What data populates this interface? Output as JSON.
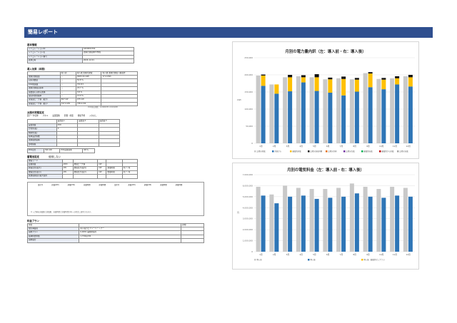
{
  "report_title": "簡易レポート",
  "basic": {
    "heading": "基本情報",
    "rows": [
      {
        "label": "シミュレーションID",
        "value": "S2K0001302"
      },
      {
        "label": "シミュレーション名",
        "value": "太陽光発電用PV作成"
      },
      {
        "label": "シミュレーション番号",
        "value": ""
      },
      {
        "label": "試算日時",
        "value": "2024-12-01"
      }
    ]
  },
  "effect": {
    "heading": "導入効果（年間）",
    "header": [
      "",
      "導入前",
      "導入後\n太陽光発電",
      "導入後\n太陽光発電＋蓄電池"
    ],
    "rows": [
      [
        "太陽光発電量",
        "－",
        "4903.04 kWh",
        "17.4 kWh"
      ],
      [
        "自家消費量",
        "－",
        "52.8 %",
        ""
      ],
      [
        "CO2削減量",
        "－",
        "372.8 t",
        ""
      ],
      [
        "太陽光発電自家率",
        "－",
        "23.7 %",
        ""
      ],
      [
        "需要量に占める太陽",
        "－",
        "3.8 %",
        ""
      ],
      [
        "電気料金削減率",
        "－",
        "13.9 %",
        ""
      ],
      [
        "受電量ピーク値（最大）",
        "567 kW",
        "475 kW",
        ""
      ],
      [
        "受電量ピーク値（最小）",
        "747.4 kW",
        "738.2 kW",
        ""
      ]
    ],
    "note": "CO2排出係数：0.000438 t-CO2/kWh"
  },
  "solar": {
    "heading": "太陽光発電設定",
    "line": [
      "面データ名称",
      "パネル",
      "設置面積",
      "影響・斜面",
      "発電予想",
      "入力なし"
    ],
    "columns": [
      "",
      "設置面１",
      "設置面２",
      "設置面３"
    ],
    "rows": [
      [
        "設置容量",
        "450",
        "",
        ""
      ],
      [
        "方位角(度)",
        "0",
        "",
        ""
      ],
      [
        "傾斜角(度)",
        "",
        "",
        ""
      ],
      [
        "基本設計係数",
        "",
        "",
        ""
      ],
      [
        "太陽電池面積",
        "",
        "",
        ""
      ],
      [
        "部材損失",
        "",
        "",
        ""
      ]
    ],
    "pcs": [
      "PCS出力",
      "500 kW",
      "PCS変換効率",
      "98 %"
    ]
  },
  "storage": {
    "heading": "蓄電池設定",
    "status": "使用しない",
    "rows": [
      [
        "放電モード",
        "",
        "",
        "",
        "",
        ""
      ],
      [
        "定格容量",
        "kWh",
        "放電ピーク値",
        "kW",
        "",
        ""
      ],
      [
        "充電出力(最大)",
        "kW",
        "放電出力(最大)",
        "kW",
        "充電時間",
        "時 ～ 時"
      ],
      [
        "放電出力(最小)",
        "kW",
        "放電出力(最小)",
        "kW",
        "放電時間",
        "時 ～ 時"
      ],
      [
        "充放電容量の最大使用",
        "",
        "",
        "",
        "",
        ""
      ]
    ],
    "box_header": [
      "設定月",
      "充電(kW)",
      "放電(kW)",
      "充電時間",
      "放電時間"
    ],
    "box_note": "※ 入力値は充電量と放電量、充電時間と放電時間が同一の場合に使用されます。"
  },
  "tariff": {
    "heading": "料金プラン",
    "columns": [
      "項目",
      "",
      "詳細"
    ],
    "rows": [
      [
        "電気事業者",
        "東京電力エナジーパートナー"
      ],
      [
        "契約プラン",
        "6,000V 業務用電力"
      ],
      [
        "基本料金単価",
        "1,734円/kW"
      ],
      [
        "契約電力",
        ""
      ]
    ]
  },
  "chart_data": [
    {
      "type": "bar",
      "title": "月別の電力量内訳（左：導入前・右：導入後）",
      "ylabel": "kWh",
      "ylim": [
        0,
        250000
      ],
      "yticks": [
        "0",
        "50,000",
        "100,000",
        "150,000",
        "200,000",
        "250,000"
      ],
      "categories": [
        "1月",
        "2月",
        "3月",
        "4月",
        "5月",
        "6月",
        "7月",
        "8月",
        "9月",
        "10月",
        "11月",
        "12月"
      ],
      "series": [
        {
          "name": "導入前",
          "color": "#c9c9c9",
          "values": [
            198000,
            172000,
            193000,
            196000,
            193000,
            187000,
            190000,
            187000,
            205000,
            188000,
            190000,
            196000
          ]
        },
        {
          "name": "受電量",
          "color": "#2e75b6",
          "values": [
            168000,
            145000,
            152000,
            178000,
            153000,
            148000,
            140000,
            151000,
            164000,
            158000,
            172000,
            166000
          ]
        },
        {
          "name": "太陽光自家消費",
          "color": "#ffc000",
          "values": [
            30000,
            27000,
            41000,
            15000,
            40000,
            39000,
            48000,
            35000,
            40000,
            28000,
            18000,
            27000
          ]
        },
        {
          "name": "余剰電力",
          "color": "#111111",
          "values": [
            3000,
            0,
            7000,
            6000,
            9000,
            5000,
            7000,
            5000,
            4000,
            5000,
            6000,
            7000
          ]
        }
      ],
      "legend": [
        "太陽光発電",
        "系統から",
        "蓄電池放電",
        "太陽光直接消費",
        "太陽光余剰",
        "太陽光売電",
        "蓄電池充電",
        "蓄電池から放電",
        "太陽光充電"
      ],
      "legend_position": "bottom"
    },
    {
      "type": "bar",
      "title": "月別の電気料金（左：導入前・右：導入後）",
      "ylabel": "円",
      "ylim": [
        0,
        7000000
      ],
      "yticks": [
        "0",
        "1,000,000",
        "2,000,000",
        "3,000,000",
        "4,000,000",
        "5,000,000",
        "6,000,000",
        "7,000,000"
      ],
      "categories": [
        "1月",
        "2月",
        "3月",
        "4月",
        "5月",
        "6月",
        "7月",
        "8月",
        "9月",
        "10月",
        "11月",
        "12月"
      ],
      "series": [
        {
          "name": "導入前",
          "color": "#c9c9c9",
          "values": [
            5900000,
            5200000,
            6000000,
            5800000,
            5700000,
            5700000,
            5800000,
            6200000,
            5900000,
            5700000,
            5900000,
            5800000
          ]
        },
        {
          "name": "導入後",
          "color": "#2e75b6",
          "values": [
            5100000,
            4400000,
            5000000,
            5100000,
            4800000,
            4900000,
            5000000,
            5300000,
            5000000,
            4900000,
            5100000,
            5000000
          ]
        }
      ],
      "legend": [
        "導入前",
        "導入後",
        "導入後（蓄電池なしプラン）"
      ],
      "legend_position": "bottom"
    }
  ]
}
